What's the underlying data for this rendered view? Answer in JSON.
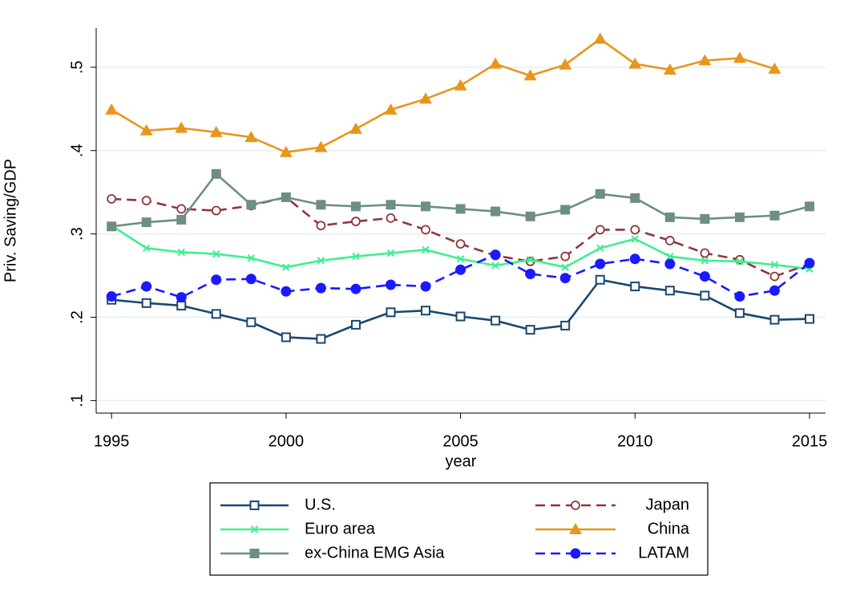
{
  "chart_data": {
    "type": "line",
    "y_label": "Priv. Saving/GDP",
    "x_label": "year",
    "x": [
      1995,
      1996,
      1997,
      1998,
      1999,
      2000,
      2001,
      2002,
      2003,
      2004,
      2005,
      2006,
      2007,
      2008,
      2009,
      2010,
      2011,
      2012,
      2013,
      2014,
      2015
    ],
    "xlim": [
      1994.56,
      2015.46
    ],
    "xticks": [
      1995,
      2000,
      2005,
      2010,
      2015
    ],
    "ylim": [
      0.085,
      0.547
    ],
    "yticks": [
      {
        "value": 0.1,
        "label": ".1"
      },
      {
        "value": 0.2,
        "label": ".2"
      },
      {
        "value": 0.3,
        "label": ".3"
      },
      {
        "value": 0.4,
        "label": ".4"
      },
      {
        "value": 0.5,
        "label": ".5"
      }
    ],
    "grid": true,
    "legend_position": "bottom",
    "series": [
      {
        "name": "U.S.",
        "color": "#1a476f",
        "marker": "square-hollow",
        "dash": false,
        "values": [
          0.221,
          0.217,
          0.214,
          0.204,
          0.194,
          0.176,
          0.174,
          0.191,
          0.206,
          0.208,
          0.201,
          0.196,
          0.185,
          0.19,
          0.245,
          0.237,
          0.232,
          0.226,
          0.205,
          0.197,
          0.198
        ]
      },
      {
        "name": "Japan",
        "color": "#90353b",
        "marker": "circle-hollow",
        "dash": true,
        "values": [
          0.342,
          0.34,
          0.33,
          0.328,
          0.334,
          0.344,
          0.31,
          0.315,
          0.319,
          0.305,
          0.288,
          0.274,
          0.267,
          0.273,
          0.305,
          0.305,
          0.292,
          0.277,
          0.269,
          0.249,
          0.264
        ]
      },
      {
        "name": "Euro area",
        "color": "#3ef08e",
        "marker": "x",
        "dash": false,
        "values": [
          0.31,
          0.283,
          0.278,
          0.276,
          0.271,
          0.26,
          0.268,
          0.273,
          0.277,
          0.281,
          0.27,
          0.262,
          0.269,
          0.26,
          0.283,
          0.294,
          0.273,
          0.268,
          0.267,
          0.263,
          0.258
        ]
      },
      {
        "name": "China",
        "color": "#e8961b",
        "marker": "triangle",
        "dash": false,
        "values": [
          0.449,
          0.424,
          0.427,
          0.422,
          0.416,
          0.398,
          0.404,
          0.426,
          0.449,
          0.462,
          0.478,
          0.504,
          0.49,
          0.503,
          0.534,
          0.504,
          0.497,
          0.508,
          0.511,
          0.498,
          null
        ]
      },
      {
        "name": "ex-China EMG Asia",
        "color": "#6e8e84",
        "marker": "square",
        "dash": false,
        "values": [
          0.309,
          0.314,
          0.317,
          0.372,
          0.335,
          0.344,
          0.335,
          0.333,
          0.335,
          0.333,
          0.33,
          0.327,
          0.321,
          0.329,
          0.348,
          0.343,
          0.32,
          0.318,
          0.32,
          0.322,
          0.333
        ]
      },
      {
        "name": "LATAM",
        "color": "#1a1aff",
        "marker": "circle",
        "dash": true,
        "values": [
          0.225,
          0.237,
          0.224,
          0.245,
          0.246,
          0.231,
          0.235,
          0.234,
          0.239,
          0.237,
          0.257,
          0.275,
          0.252,
          0.247,
          0.264,
          0.27,
          0.264,
          0.249,
          0.225,
          0.232,
          0.265
        ]
      }
    ]
  }
}
